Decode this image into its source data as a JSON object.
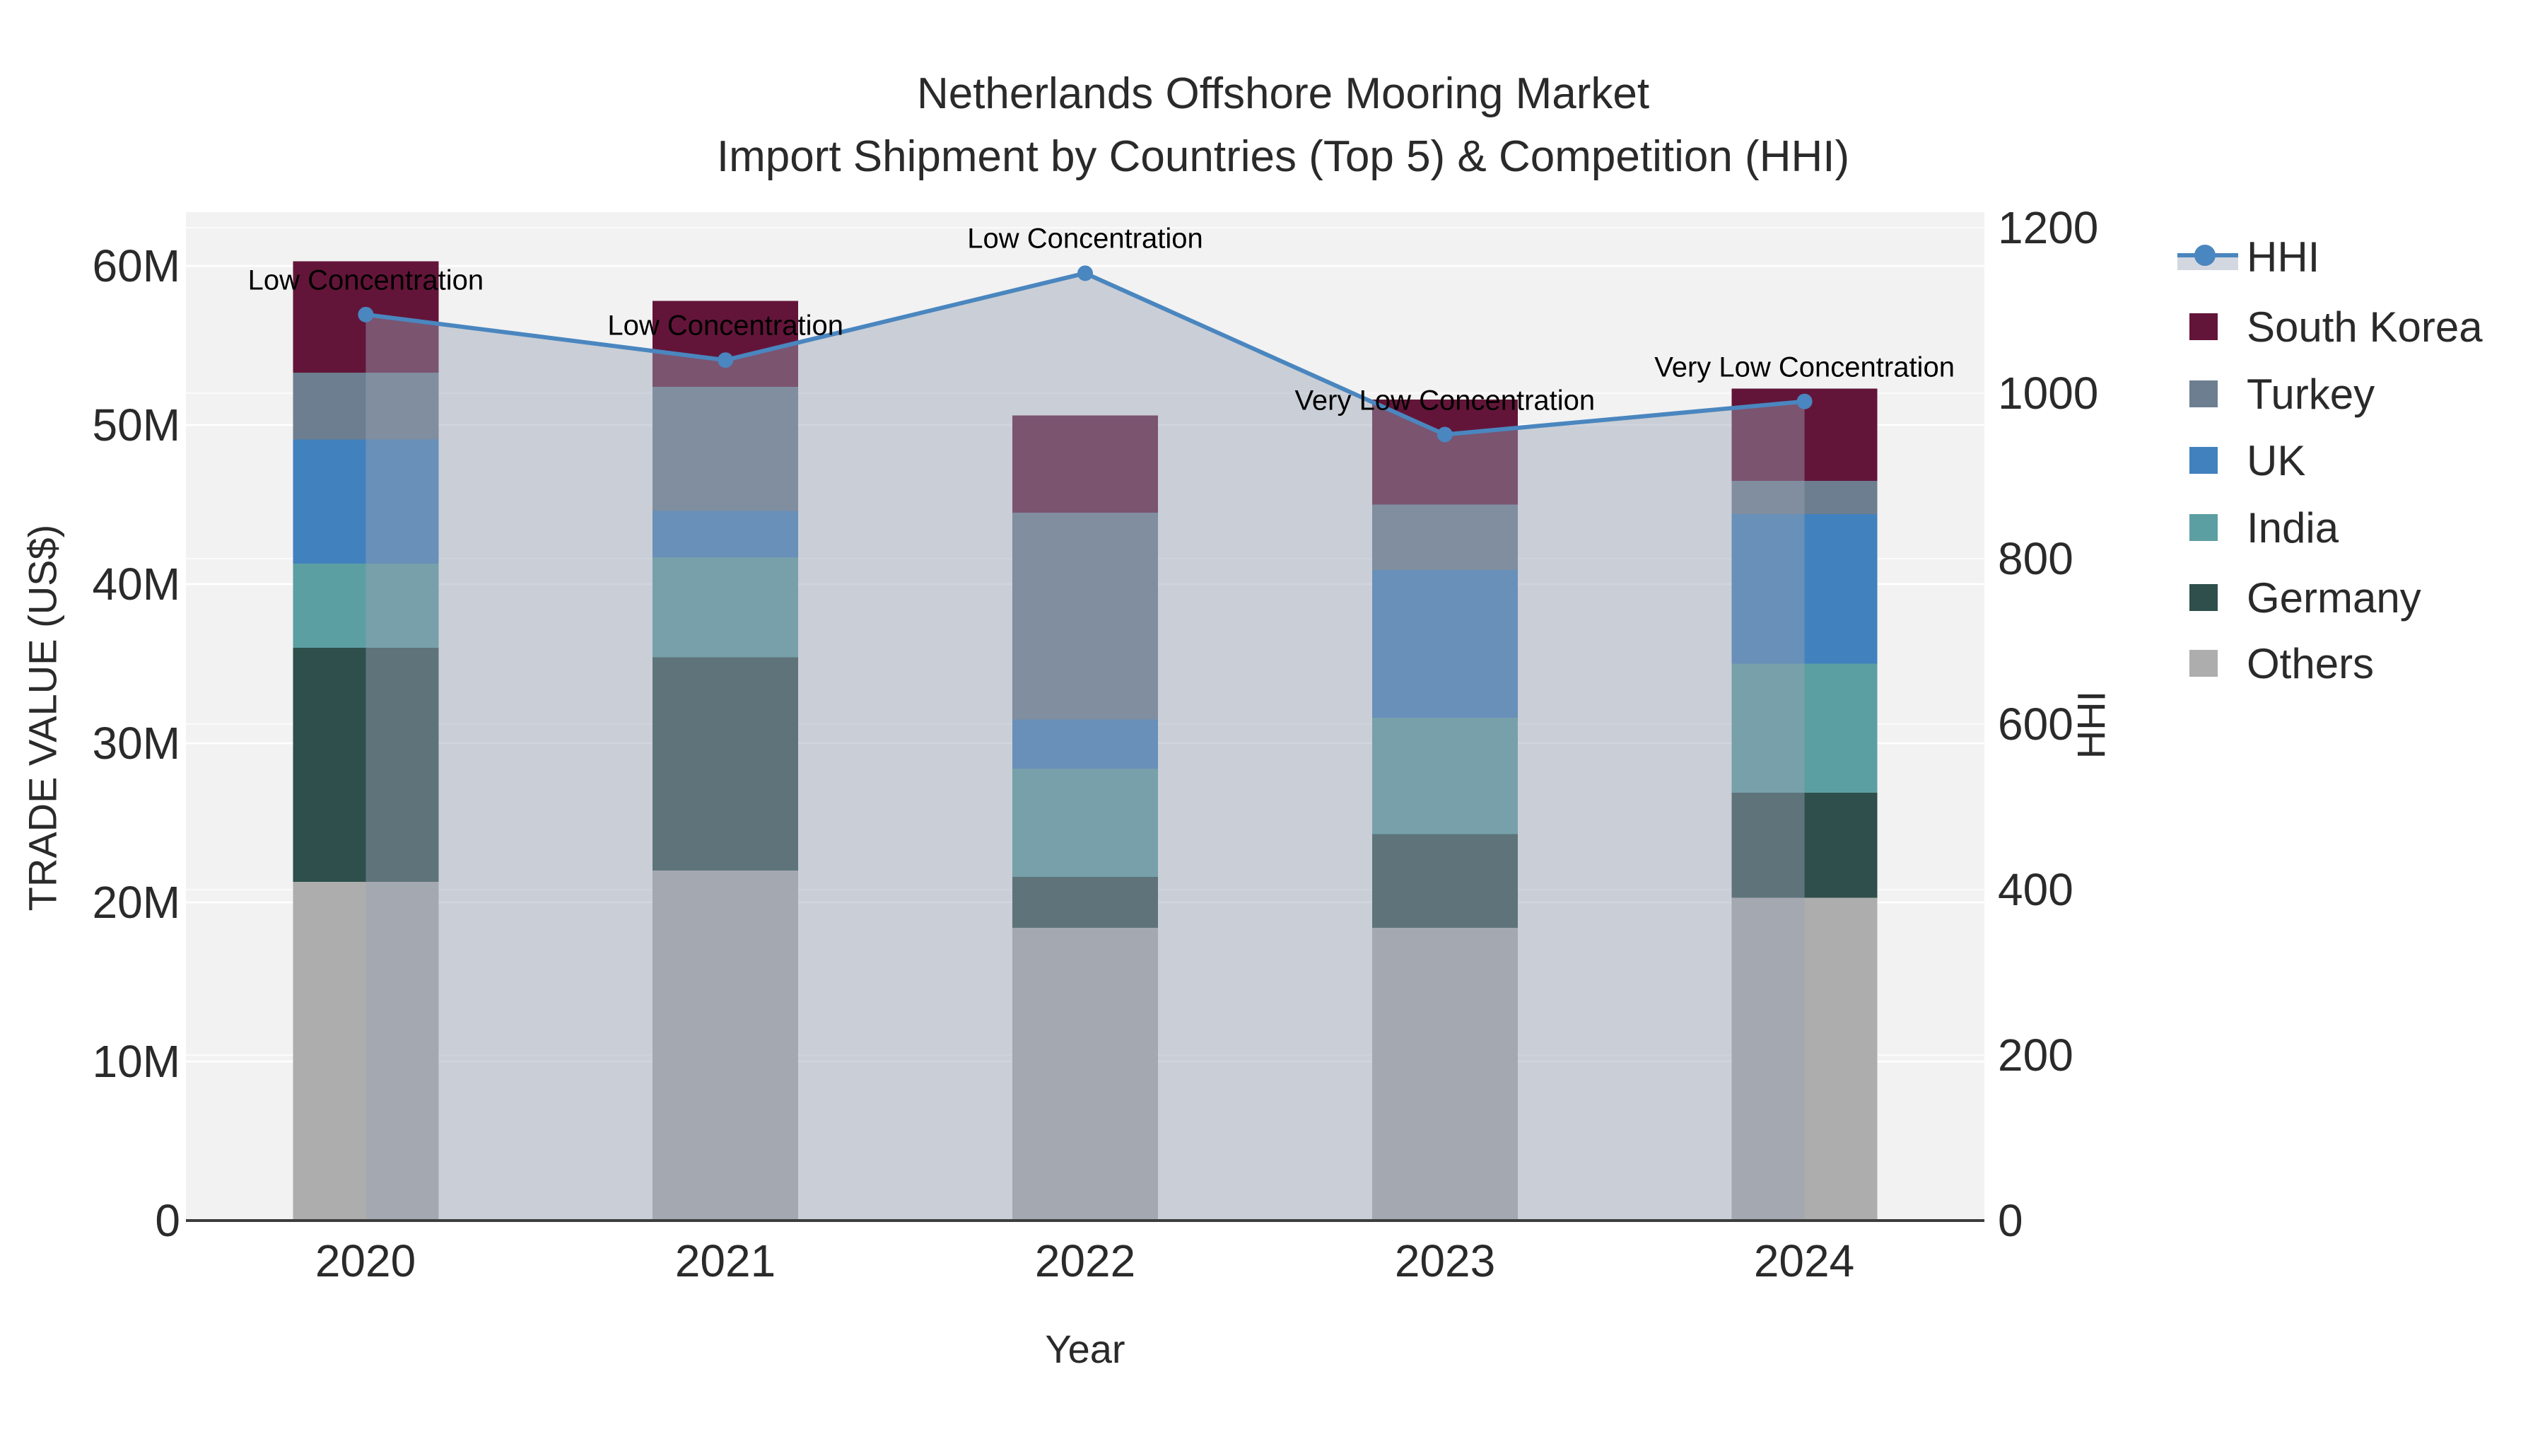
{
  "title": {
    "line1": "Netherlands Offshore Mooring Market",
    "line2": "Import Shipment by Countries (Top 5) & Competition (HHI)"
  },
  "axes": {
    "x": {
      "title": "Year",
      "ticks": [
        "2020",
        "2021",
        "2022",
        "2023",
        "2024"
      ]
    },
    "left": {
      "title": "TRADE VALUE (US$)",
      "ticks": [
        "0",
        "10M",
        "20M",
        "30M",
        "40M",
        "50M",
        "60M"
      ]
    },
    "right": {
      "title": "HHI",
      "ticks": [
        "0",
        "200",
        "400",
        "600",
        "800",
        "1000",
        "1200"
      ]
    }
  },
  "legend": {
    "items": [
      {
        "label": "HHI",
        "kind": "line",
        "color": "#4a86bf",
        "fill": "#d3d8e0"
      },
      {
        "label": "South Korea",
        "kind": "square",
        "color": "#631539"
      },
      {
        "label": "Turkey",
        "kind": "square",
        "color": "#6c7e90"
      },
      {
        "label": "UK",
        "kind": "square",
        "color": "#4181be"
      },
      {
        "label": "India",
        "kind": "square",
        "color": "#5c9fa2"
      },
      {
        "label": "Germany",
        "kind": "square",
        "color": "#2e4f4b"
      },
      {
        "label": "Others",
        "kind": "square",
        "color": "#adadad"
      }
    ]
  },
  "annotations": [
    "Low Concentration",
    "Low Concentration",
    "Low Concentration",
    "Very Low Concentration",
    "Very Low Concentration"
  ],
  "colors": {
    "page_bg": "#ffffff",
    "plot_bg": "#f2f2f2",
    "grid_major": "#ffffff",
    "grid_secondary": "rgba(255,255,255,0.65)",
    "axis_line": "#3d3d3d",
    "hhi_line": "#4a86bf",
    "hhi_area_overlay": "rgba(152,161,180,0.45)",
    "text": "#2a2a2a"
  },
  "chart_data": {
    "type": "bar",
    "subtype": "stacked-bars-with-line-and-area",
    "title": "Netherlands Offshore Mooring Market — Import Shipment by Countries (Top 5) & Competition (HHI)",
    "xlabel": "Year",
    "ylabel_left": "TRADE VALUE (US$)",
    "ylabel_right": "HHI",
    "categories": [
      "2020",
      "2021",
      "2022",
      "2023",
      "2024"
    ],
    "unit": "million US$",
    "series": [
      {
        "name": "Others",
        "color": "#adadad",
        "values": [
          21.3,
          22.0,
          18.4,
          18.4,
          20.3
        ]
      },
      {
        "name": "Germany",
        "color": "#2e4f4b",
        "values": [
          14.7,
          13.4,
          3.2,
          5.9,
          6.6
        ]
      },
      {
        "name": "India",
        "color": "#5c9fa2",
        "values": [
          5.3,
          6.3,
          6.8,
          7.3,
          8.1
        ]
      },
      {
        "name": "UK",
        "color": "#4181be",
        "values": [
          7.8,
          2.9,
          3.1,
          9.3,
          9.4
        ]
      },
      {
        "name": "Turkey",
        "color": "#6c7e90",
        "values": [
          4.2,
          7.8,
          13.0,
          4.1,
          2.1
        ]
      },
      {
        "name": "South Korea",
        "color": "#631539",
        "values": [
          7.0,
          5.4,
          6.1,
          6.6,
          5.8
        ]
      }
    ],
    "bar_totals_M": [
      60.3,
      57.8,
      50.6,
      51.6,
      52.3
    ],
    "line_series": {
      "name": "HHI",
      "color": "#4a86bf",
      "yaxis": "right",
      "fill_to_zero": true,
      "values": [
        1095,
        1040,
        1145,
        950,
        990
      ]
    },
    "left_axis": {
      "range_M": [
        0,
        63.4
      ],
      "tick_step_M": 10,
      "grid": true
    },
    "right_axis": {
      "range": [
        0,
        1219
      ],
      "tick_step": 200,
      "grid": true
    },
    "legend_position": "right",
    "annotations_above_line_points": [
      "Low Concentration",
      "Low Concentration",
      "Low Concentration",
      "Very Low Concentration",
      "Very Low Concentration"
    ]
  }
}
